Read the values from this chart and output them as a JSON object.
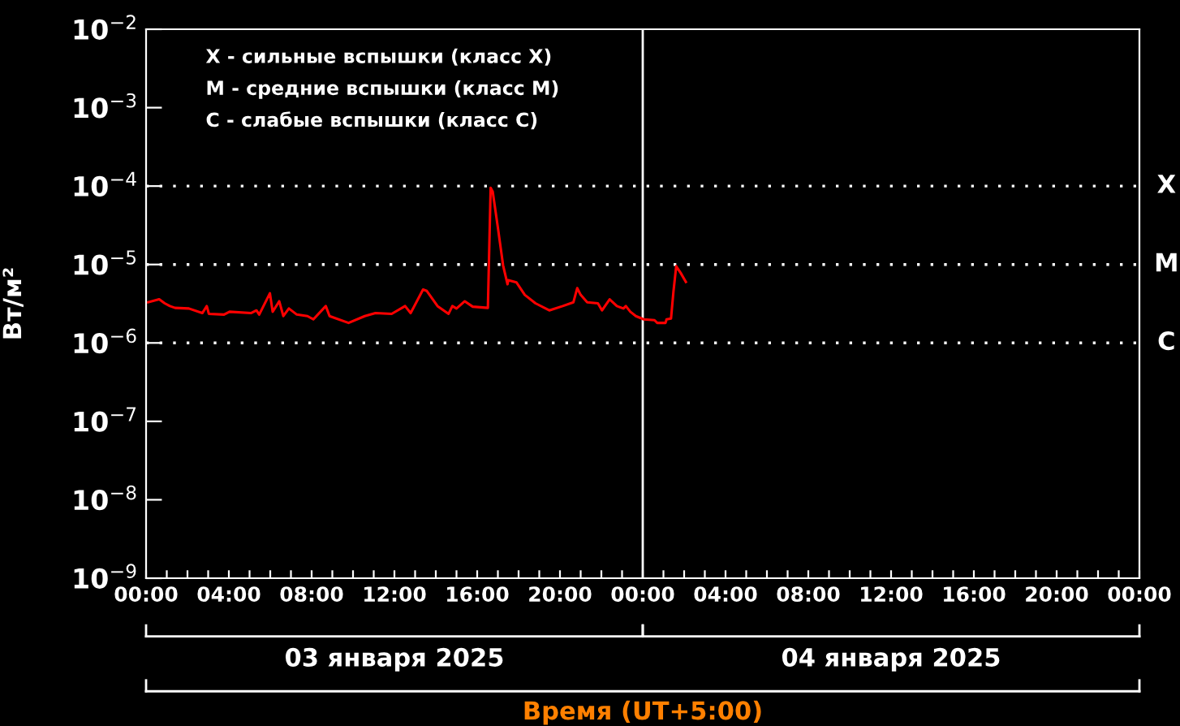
{
  "chart_data": {
    "type": "line",
    "ylabel": "Вт/м²",
    "xlabel": "Время (UT+5:00)",
    "log": "y",
    "xlim": [
      "2025-01-03T00:00",
      "2025-01-05T00:00"
    ],
    "ylim": [
      1e-09,
      0.01
    ],
    "xticks": [
      {
        "value": "2025-01-03T00:00",
        "label": "00:00"
      },
      {
        "value": "2025-01-03T01:00",
        "label": null
      },
      {
        "value": "2025-01-03T02:00",
        "label": null
      },
      {
        "value": "2025-01-03T03:00",
        "label": null
      },
      {
        "value": "2025-01-03T04:00",
        "label": "04:00"
      },
      {
        "value": "2025-01-03T05:00",
        "label": null
      },
      {
        "value": "2025-01-03T06:00",
        "label": null
      },
      {
        "value": "2025-01-03T07:00",
        "label": null
      },
      {
        "value": "2025-01-03T08:00",
        "label": "08:00"
      },
      {
        "value": "2025-01-03T09:00",
        "label": null
      },
      {
        "value": "2025-01-03T10:00",
        "label": null
      },
      {
        "value": "2025-01-03T11:00",
        "label": null
      },
      {
        "value": "2025-01-03T12:00",
        "label": "12:00"
      },
      {
        "value": "2025-01-03T13:00",
        "label": null
      },
      {
        "value": "2025-01-03T14:00",
        "label": null
      },
      {
        "value": "2025-01-03T15:00",
        "label": null
      },
      {
        "value": "2025-01-03T16:00",
        "label": "16:00"
      },
      {
        "value": "2025-01-03T17:00",
        "label": null
      },
      {
        "value": "2025-01-03T18:00",
        "label": null
      },
      {
        "value": "2025-01-03T19:00",
        "label": null
      },
      {
        "value": "2025-01-03T20:00",
        "label": "20:00"
      },
      {
        "value": "2025-01-03T21:00",
        "label": null
      },
      {
        "value": "2025-01-03T22:00",
        "label": null
      },
      {
        "value": "2025-01-03T23:00",
        "label": null
      },
      {
        "value": "2025-01-04T00:00",
        "label": "00:00"
      },
      {
        "value": "2025-01-04T01:00",
        "label": null
      },
      {
        "value": "2025-01-04T02:00",
        "label": null
      },
      {
        "value": "2025-01-04T03:00",
        "label": null
      },
      {
        "value": "2025-01-04T04:00",
        "label": "04:00"
      },
      {
        "value": "2025-01-04T05:00",
        "label": null
      },
      {
        "value": "2025-01-04T06:00",
        "label": null
      },
      {
        "value": "2025-01-04T07:00",
        "label": null
      },
      {
        "value": "2025-01-04T08:00",
        "label": "08:00"
      },
      {
        "value": "2025-01-04T09:00",
        "label": null
      },
      {
        "value": "2025-01-04T10:00",
        "label": null
      },
      {
        "value": "2025-01-04T11:00",
        "label": null
      },
      {
        "value": "2025-01-04T12:00",
        "label": "12:00"
      },
      {
        "value": "2025-01-04T13:00",
        "label": null
      },
      {
        "value": "2025-01-04T14:00",
        "label": null
      },
      {
        "value": "2025-01-04T15:00",
        "label": null
      },
      {
        "value": "2025-01-04T16:00",
        "label": "16:00"
      },
      {
        "value": "2025-01-04T17:00",
        "label": null
      },
      {
        "value": "2025-01-04T18:00",
        "label": null
      },
      {
        "value": "2025-01-04T19:00",
        "label": null
      },
      {
        "value": "2025-01-04T20:00",
        "label": "20:00"
      },
      {
        "value": "2025-01-04T21:00",
        "label": null
      },
      {
        "value": "2025-01-04T22:00",
        "label": null
      },
      {
        "value": "2025-01-04T23:00",
        "label": null
      },
      {
        "value": "2025-01-05T00:00",
        "label": "00:00"
      }
    ],
    "yticks": [
      {
        "value": 1e-09,
        "label": "10$^{−9}$"
      },
      {
        "value": 1e-08,
        "label": "10$^{−8}$"
      },
      {
        "value": 1e-07,
        "label": "10$^{−7}$"
      },
      {
        "value": 1e-06,
        "label": "10$^{−6}$"
      },
      {
        "value": 1e-05,
        "label": "10$^{−5}$"
      },
      {
        "value": 0.0001,
        "label": "10$^{−4}$"
      },
      {
        "value": 0.001,
        "label": "10$^{−3}$"
      },
      {
        "value": 0.01,
        "label": "10$^{−2}$"
      }
    ],
    "grid": false,
    "legend": false,
    "marker": "none",
    "line_style": "solid",
    "ref_lines": [
      {
        "axis": "y",
        "value": 0.0001,
        "label": "X",
        "color": "#ffffff",
        "line_style": "dotted"
      },
      {
        "axis": "y",
        "value": 1e-05,
        "label": "M",
        "color": "#ffffff",
        "line_style": "dotted"
      },
      {
        "axis": "y",
        "value": 1e-06,
        "label": "C",
        "color": "#ffffff",
        "line_style": "dotted"
      },
      {
        "axis": "x",
        "value": "2025-01-04T00:00",
        "label": null,
        "color": "#ffffff",
        "line_style": "solid"
      }
    ],
    "annotations": [
      "X - сильные вспышки (класс X)",
      "M - средние вспышки (класс M)",
      "C - слабые вспышки (класс C)",
      "03 января 2025",
      "04 января 2025"
    ],
    "series": [
      {
        "color": "#ff0000",
        "x": [
          "2025-01-03T00:06",
          "2025-01-03T00:38",
          "2025-01-03T00:54",
          "2025-01-03T01:09",
          "2025-01-03T01:24",
          "2025-01-03T02:04",
          "2025-01-03T02:43",
          "2025-01-03T02:56",
          "2025-01-03T03:02",
          "2025-01-03T03:46",
          "2025-01-03T04:02",
          "2025-01-03T05:04",
          "2025-01-03T05:20",
          "2025-01-03T05:28",
          "2025-01-03T05:59",
          "2025-01-03T06:07",
          "2025-01-03T06:26",
          "2025-01-03T06:38",
          "2025-01-03T06:54",
          "2025-01-03T07:17",
          "2025-01-03T07:48",
          "2025-01-03T08:05",
          "2025-01-03T08:41",
          "2025-01-03T08:52",
          "2025-01-03T09:47",
          "2025-01-03T10:34",
          "2025-01-03T11:05",
          "2025-01-03T11:52",
          "2025-01-03T12:31",
          "2025-01-03T12:47",
          "2025-01-03T13:23",
          "2025-01-03T13:34",
          "2025-01-03T14:05",
          "2025-01-03T14:37",
          "2025-01-03T14:48",
          "2025-01-03T15:00",
          "2025-01-03T15:24",
          "2025-01-03T15:47",
          "2025-01-03T16:31",
          "2025-01-03T16:39",
          "2025-01-03T16:45",
          "2025-01-03T17:00",
          "2025-01-03T17:15",
          "2025-01-03T17:28",
          "2025-01-03T17:30",
          "2025-01-03T17:54",
          "2025-01-03T18:18",
          "2025-01-03T18:49",
          "2025-01-03T19:29",
          "2025-01-03T20:08",
          "2025-01-03T20:39",
          "2025-01-03T20:50",
          "2025-01-03T21:00",
          "2025-01-03T21:19",
          "2025-01-03T21:50",
          "2025-01-03T22:02",
          "2025-01-03T22:24",
          "2025-01-03T22:45",
          "2025-01-03T23:04",
          "2025-01-03T23:11",
          "2025-01-03T23:24",
          "2025-01-03T23:40",
          "2025-01-04T00:03",
          "2025-01-04T00:34",
          "2025-01-04T00:42",
          "2025-01-04T01:06",
          "2025-01-04T01:09",
          "2025-01-04T01:22",
          "2025-01-04T01:29",
          "2025-01-04T01:37",
          "2025-01-04T01:50",
          "2025-01-04T02:05"
        ],
        "values": [
          3.3e-06,
          3.6e-06,
          3.2e-06,
          2.95e-06,
          2.8e-06,
          2.75e-06,
          2.4e-06,
          2.95e-06,
          2.35e-06,
          2.3e-06,
          2.5e-06,
          2.4e-06,
          2.6e-06,
          2.3e-06,
          4.3e-06,
          2.5e-06,
          3.4e-06,
          2.2e-06,
          2.75e-06,
          2.3e-06,
          2.2e-06,
          2e-06,
          2.95e-06,
          2.2e-06,
          1.8e-06,
          2.2e-06,
          2.4e-06,
          2.35e-06,
          2.95e-06,
          2.4e-06,
          4.8e-06,
          4.6e-06,
          2.95e-06,
          2.35e-06,
          2.95e-06,
          2.75e-06,
          3.4e-06,
          2.9e-06,
          2.8e-06,
          9.5e-05,
          8.5e-05,
          2.95e-05,
          9.8e-06,
          5.6e-06,
          6.3e-06,
          5.9e-06,
          4.1e-06,
          3.2e-06,
          2.6e-06,
          2.95e-06,
          3.3e-06,
          5e-06,
          4.1e-06,
          3.3e-06,
          3.2e-06,
          2.6e-06,
          3.6e-06,
          2.95e-06,
          2.75e-06,
          2.95e-06,
          2.5e-06,
          2.2e-06,
          2e-06,
          1.95e-06,
          1.8e-06,
          1.8e-06,
          2e-06,
          2.05e-06,
          4.5e-06,
          9.5e-06,
          7.8e-06,
          6e-06
        ]
      }
    ]
  }
}
